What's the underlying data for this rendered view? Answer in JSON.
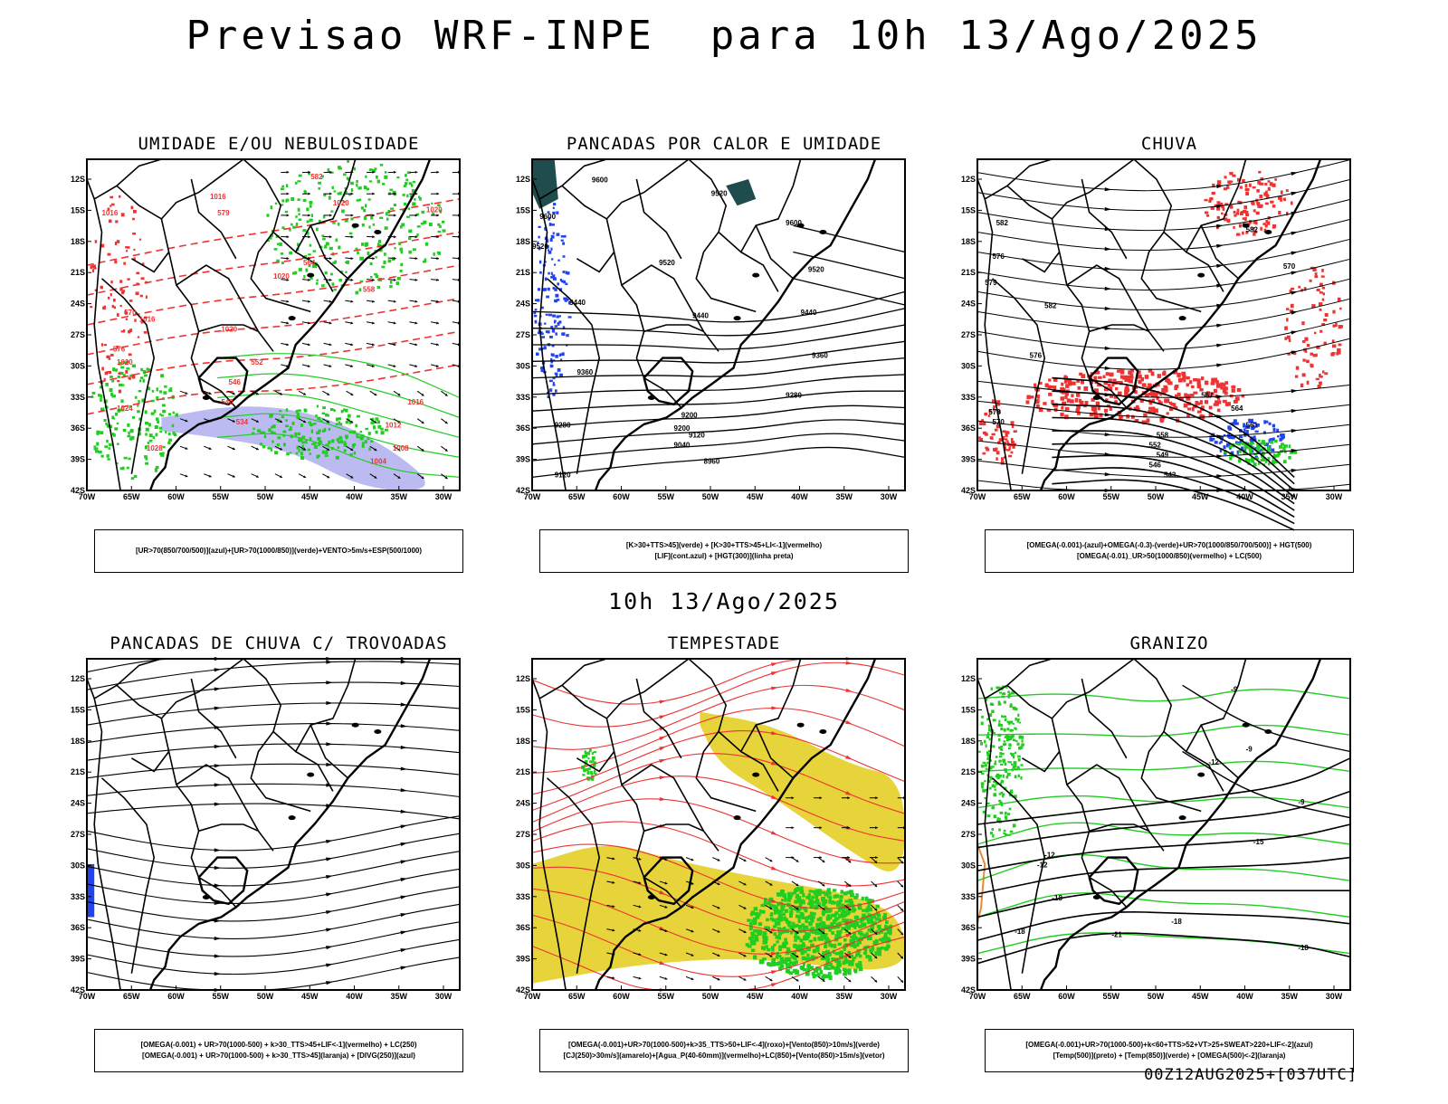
{
  "header": {
    "title": "Previsao WRF-INPE  para 10h 13/Ago/2025"
  },
  "middle_title": "10h 13/Ago/2025",
  "footer": "00Z12AUG2025+[037UTC]",
  "axes": {
    "lat_labels": [
      "12S",
      "15S",
      "18S",
      "21S",
      "24S",
      "27S",
      "30S",
      "33S",
      "36S",
      "39S",
      "42S"
    ],
    "lon_labels": [
      "70W",
      "65W",
      "60W",
      "55W",
      "50W",
      "45W",
      "40W",
      "35W",
      "30W"
    ]
  },
  "colors": {
    "green": "#22cc22",
    "blue": "#2244ee",
    "red": "#ee3333",
    "yellow": "#e6d43a",
    "lavender": "#aaaaee",
    "teal": "#1f4d4d",
    "orange": "#ee8833"
  },
  "panels": [
    {
      "title": "UMIDADE E/OU NEBULOSIDADE",
      "legend": [
        "[UR>70(850/700/500)](azul)+[UR>70(1000/850)](verde)+VENTO>5m/s+ESP(500/1000)"
      ],
      "labels": [
        "1016",
        "1016",
        "1020",
        "1020",
        "1020",
        "1016",
        "1020",
        "1020",
        "1016",
        "1024",
        "1028",
        "1012",
        "1008",
        "1004",
        "570",
        "576",
        "579",
        "564",
        "558",
        "552",
        "546",
        "540",
        "534",
        "582"
      ]
    },
    {
      "title": "PANCADAS POR CALOR E UMIDADE",
      "legend": [
        "[K>30+TTS>45](verde) + [K>30+TTS>45+LI<-1](vermelho)",
        "[LIF](cont.azul) + [HGT(300)](linha preta)"
      ],
      "labels": [
        "9600",
        "9520",
        "9600",
        "9520",
        "9600",
        "9520",
        "9520",
        "9440",
        "9440",
        "9440",
        "9360",
        "9360",
        "9280",
        "9280",
        "9200",
        "9200",
        "9120",
        "9120",
        "9040",
        "8960"
      ]
    },
    {
      "title": "CHUVA",
      "legend": [
        "[OMEGA(-0.001)-(azul)+OMEGA(-0.3)-(verde)+UR>70(1000/850/700/500)] + HGT(500)",
        "[OMEGA(-0.01)_UR>50(1000/850)(vermelho) + LC(500)"
      ],
      "labels": [
        "582",
        "576",
        "582",
        "579",
        "582",
        "570",
        "576",
        "570",
        "567",
        "564",
        "561",
        "558",
        "552",
        "549",
        "546",
        "543",
        "573"
      ]
    },
    {
      "title": "PANCADAS DE CHUVA C/ TROVOADAS",
      "legend": [
        "[OMEGA(-0.001) + UR>70(1000-500) + k>30_TTS>45+LIF<-1](vermelho) + LC(250)",
        "[OMEGA(-0.001) + UR>70(1000-500) + k>30_TTS>45](laranja) + [DIVG(250)](azul)"
      ],
      "labels": []
    },
    {
      "title": "TEMPESTADE",
      "legend": [
        "[OMEGA(-0.001)+UR>70(1000-500)+k>35_TTS>50+LIF<-4](roxo)+[Vento(850)>10m/s](verde)",
        "[CJ(250)>30m/s](amarelo)+[Agua_P(40-60mm)](vermelho)+LC(850)+[Vento(850)>15m/s](vetor)"
      ],
      "labels": []
    },
    {
      "title": "GRANIZO",
      "legend": [
        "[OMEGA(-0.001)+UR>70(1000-500)+k<60+TTS>52+VT>25+SWEAT>220+LIF<-2](azul)",
        "[Temp(500)](preto) + [Temp(850)](verde) + [OMEGA(500)<-2](laranja)"
      ],
      "labels": [
        "-9",
        "-12",
        "-9",
        "-9",
        "-12",
        "-15",
        "-12",
        "-18",
        "-18",
        "-18",
        "-21",
        "-18"
      ]
    }
  ]
}
